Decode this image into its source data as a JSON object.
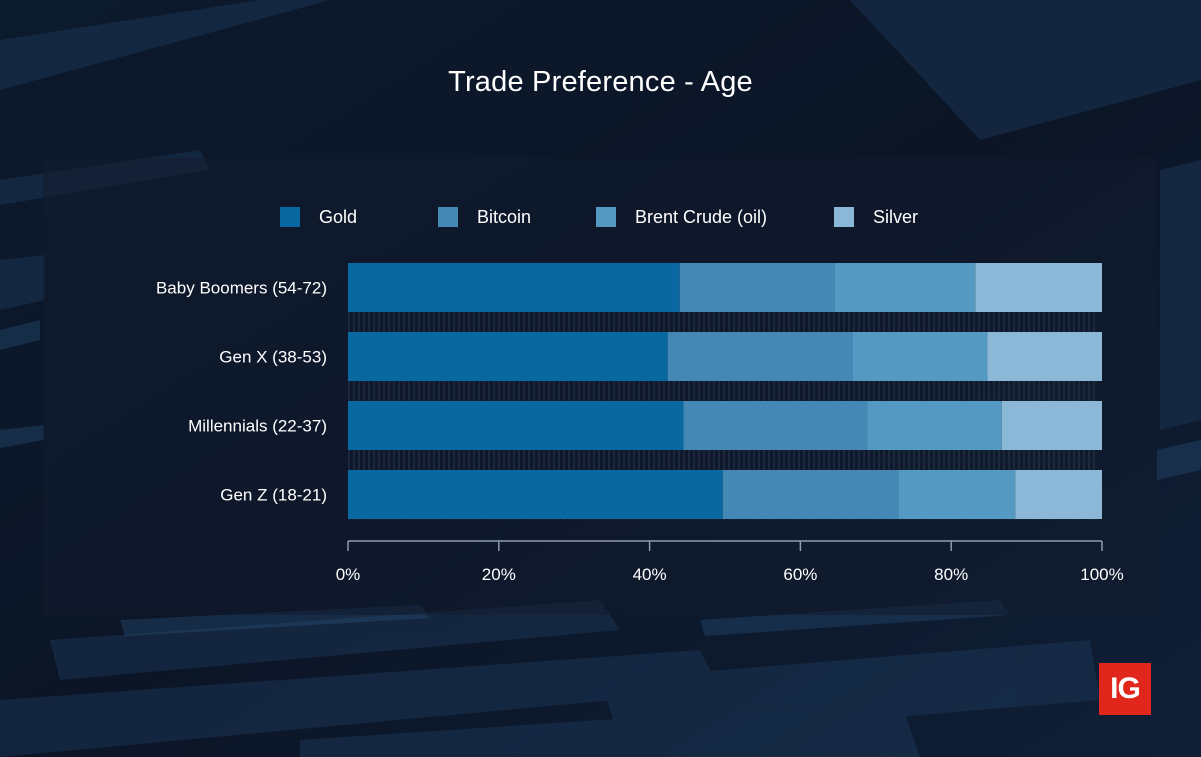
{
  "brand": {
    "logo_text": "IG",
    "logo_color": "#e1261c"
  },
  "chart_data": {
    "type": "bar",
    "orientation": "horizontal",
    "stacked": true,
    "normalized": true,
    "title": "Trade Preference - Age",
    "categories": [
      "Baby Boomers (54-72)",
      "Gen X (38-53)",
      "Millennials (22-37)",
      "Gen Z (18-21)"
    ],
    "series": [
      {
        "name": "Gold",
        "color": "#0a68a0",
        "values": [
          44,
          42.4,
          44.5,
          49.7
        ]
      },
      {
        "name": "Bitcoin",
        "color": "#4588b6",
        "values": [
          20.5,
          24.5,
          24.4,
          23.3
        ]
      },
      {
        "name": "Brent Crude (oil)",
        "color": "#5499c2",
        "values": [
          18.7,
          17.9,
          17.8,
          15.5
        ]
      },
      {
        "name": "Silver",
        "color": "#8ab8d6",
        "values": [
          16.8,
          15.2,
          13.3,
          11.5
        ]
      }
    ],
    "xticks": [
      "0%",
      "20%",
      "40%",
      "60%",
      "80%",
      "100%"
    ],
    "xlim": [
      0,
      100
    ],
    "legend": "top",
    "grid": false
  }
}
